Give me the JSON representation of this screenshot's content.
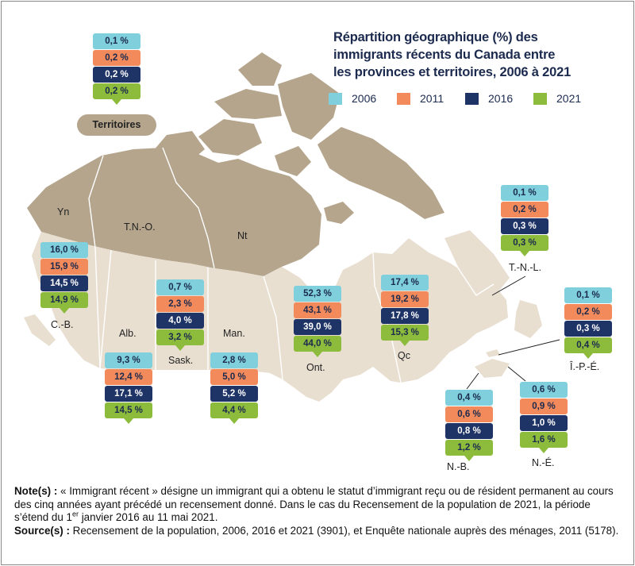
{
  "title": {
    "line1": "Répartition géographique (%) des",
    "line2": "immigrants récents du Canada entre",
    "line3": "les provinces et territoires, 2006 à 2021"
  },
  "colors": {
    "2006": "#7fcfdc",
    "2011": "#f28a5b",
    "2016": "#1f3466",
    "2021": "#8dbb3c",
    "territory_land": "#b4a58c",
    "province_land": "#e8dfd1",
    "lines": "#ffffff"
  },
  "chart_data": {
    "type": "table",
    "title": "Répartition géographique (%) des immigrants récents du Canada entre les provinces et territoires, 2006 à 2021",
    "unit": "%",
    "series_names": [
      "2006",
      "2011",
      "2016",
      "2021"
    ],
    "regions": [
      {
        "key": "territoires",
        "label": "Territoires",
        "values": [
          "0,1 %",
          "0,2 %",
          "0,2 %",
          "0,2 %"
        ]
      },
      {
        "key": "cb",
        "label": "C.-B.",
        "values": [
          "16,0 %",
          "15,9 %",
          "14,5 %",
          "14,9 %"
        ]
      },
      {
        "key": "alb",
        "label": "Alb.",
        "values": [
          "9,3 %",
          "12,4 %",
          "17,1 %",
          "14,5 %"
        ]
      },
      {
        "key": "sask",
        "label": "Sask.",
        "values": [
          "0,7 %",
          "2,3 %",
          "4,0 %",
          "3,2 %"
        ]
      },
      {
        "key": "man",
        "label": "Man.",
        "values": [
          "2,8 %",
          "5,0 %",
          "5,2 %",
          "4,4 %"
        ]
      },
      {
        "key": "ont",
        "label": "Ont.",
        "values": [
          "52,3 %",
          "43,1 %",
          "39,0 %",
          "44,0 %"
        ]
      },
      {
        "key": "qc",
        "label": "Qc",
        "values": [
          "17,4 %",
          "19,2 %",
          "17,8 %",
          "15,3 %"
        ]
      },
      {
        "key": "tnl",
        "label": "T.-N.-L.",
        "values": [
          "0,1 %",
          "0,2 %",
          "0,3 %",
          "0,3 %"
        ]
      },
      {
        "key": "ipe",
        "label": "Î.-P.-É.",
        "values": [
          "0,1 %",
          "0,2 %",
          "0,3 %",
          "0,4 %"
        ]
      },
      {
        "key": "nb",
        "label": "N.-B.",
        "values": [
          "0,4 %",
          "0,6 %",
          "0,8 %",
          "1,2 %"
        ]
      },
      {
        "key": "ne",
        "label": "N.-É.",
        "values": [
          "0,6 %",
          "0,9 %",
          "1,0 %",
          "1,6 %"
        ]
      }
    ],
    "map_labels": {
      "yn": "Yn",
      "tno": "T.N.-O.",
      "nt": "Nt"
    }
  },
  "notes": {
    "note_label": "Note(s) :",
    "note_text_before_sup": " « Immigrant récent » désigne un immigrant qui a obtenu le statut d’immigrant reçu ou de résident permanent au cours des cinq années ayant précédé un recensement donné. Dans le cas du Recensement de la population de 2021, la période s’étend du 1",
    "note_sup": "er",
    "note_text_after_sup": " janvier 2016 au 11 mai 2021.",
    "source_label": "Source(s) :",
    "source_text": " Recensement de la population, 2006, 2016 et 2021 (3901), et Enquête nationale auprès des ménages, 2011 (5178)."
  }
}
